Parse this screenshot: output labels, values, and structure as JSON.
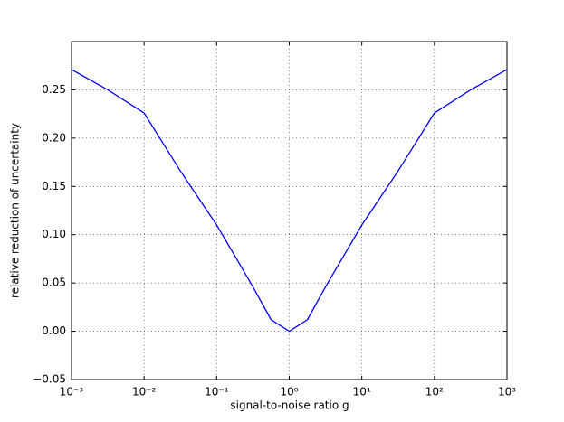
{
  "chart_data": {
    "type": "line",
    "xscale": "log",
    "grid": true,
    "xlabel": "signal-to-noise ratio g",
    "ylabel": "relative reduction of uncertainty",
    "x": [
      0.001,
      0.00316,
      0.01,
      0.0316,
      0.0562,
      0.1,
      0.178,
      0.316,
      0.562,
      1,
      1.78,
      3.16,
      5.62,
      10,
      17.8,
      31.6,
      100,
      316,
      1000
    ],
    "series": [
      {
        "color": "#0000ff",
        "values": [
          0.271,
          0.25,
          0.226,
          0.166,
          0.138,
          0.11,
          0.078,
          0.046,
          0.012,
          0,
          0.012,
          0.046,
          0.078,
          0.11,
          0.138,
          0.166,
          0.226,
          0.25,
          0.271
        ]
      }
    ],
    "xlim": [
      0.001,
      1000
    ],
    "xticks": [
      {
        "value": 0.001,
        "label": "10⁻³"
      },
      {
        "value": 0.01,
        "label": "10⁻²"
      },
      {
        "value": 0.1,
        "label": "10⁻¹"
      },
      {
        "value": 1,
        "label": "10⁰"
      },
      {
        "value": 10,
        "label": "10¹"
      },
      {
        "value": 100,
        "label": "10²"
      },
      {
        "value": 1000,
        "label": "10³"
      }
    ],
    "ylim": [
      -0.05,
      0.3
    ],
    "yticks": [
      {
        "value": -0.05,
        "label": "−0.05"
      },
      {
        "value": 0,
        "label": "0.00"
      },
      {
        "value": 0.05,
        "label": "0.05"
      },
      {
        "value": 0.1,
        "label": "0.10"
      },
      {
        "value": 0.15,
        "label": "0.15"
      },
      {
        "value": 0.2,
        "label": "0.20"
      },
      {
        "value": 0.25,
        "label": "0.25"
      }
    ]
  }
}
